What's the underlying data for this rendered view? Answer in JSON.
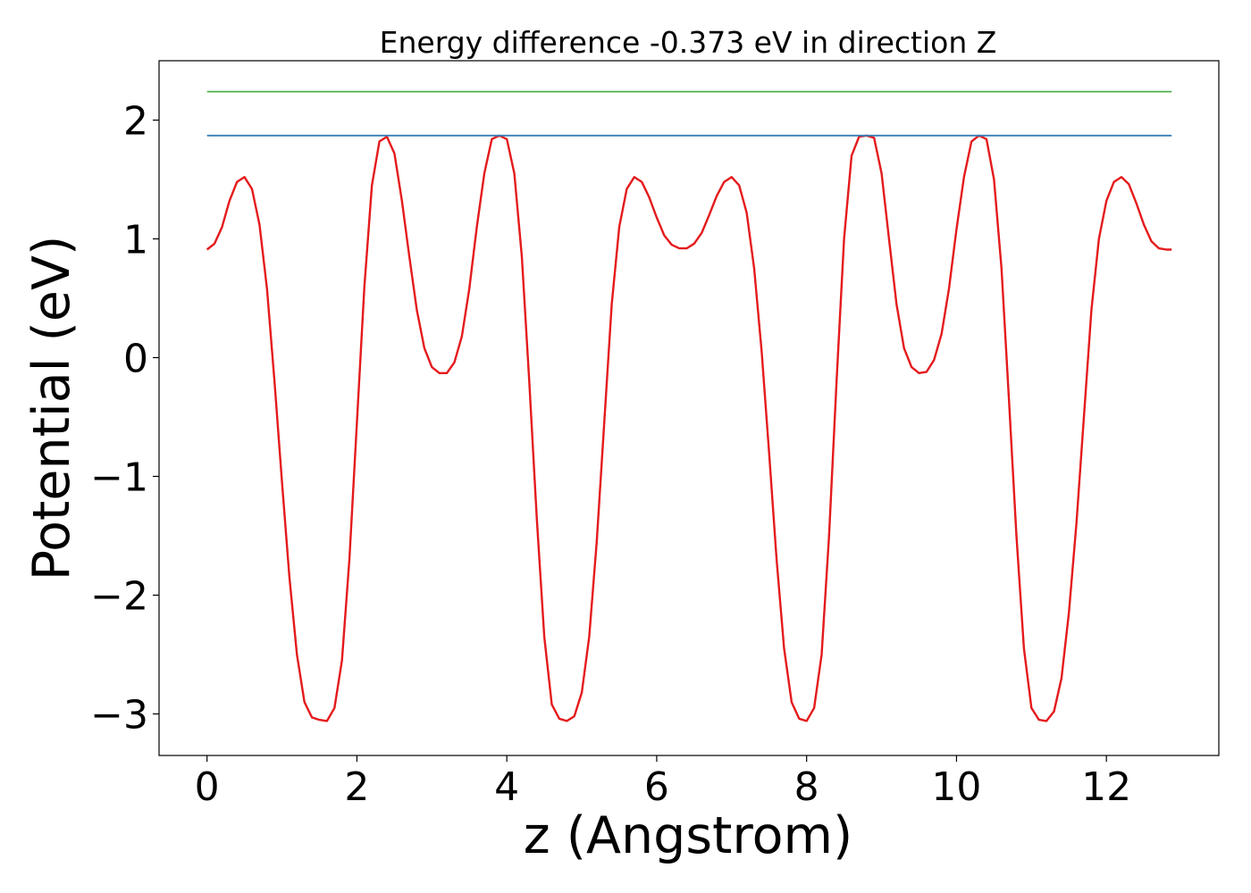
{
  "chart_data": {
    "type": "line",
    "title": "Energy difference -0.373 eV in direction Z",
    "xlabel": "z (Angstrom)",
    "ylabel": "Potential (eV)",
    "xlim": [
      -0.64,
      13.5
    ],
    "ylim": [
      -3.35,
      2.5
    ],
    "xticks": [
      0,
      2,
      4,
      6,
      8,
      10,
      12
    ],
    "xtick_labels": [
      "0",
      "2",
      "4",
      "6",
      "8",
      "10",
      "12"
    ],
    "yticks": [
      -3,
      -2,
      -1,
      0,
      1,
      2
    ],
    "ytick_labels": [
      "−3",
      "−2",
      "−1",
      "0",
      "1",
      "2"
    ],
    "grid": false,
    "series": [
      {
        "color": "#e41a1c",
        "x": [
          0.0,
          0.1,
          0.2,
          0.3,
          0.4,
          0.5,
          0.6,
          0.7,
          0.8,
          0.9,
          1.0,
          1.1,
          1.2,
          1.3,
          1.4,
          1.5,
          1.6,
          1.7,
          1.8,
          1.9,
          2.0,
          2.1,
          2.2,
          2.3,
          2.4,
          2.5,
          2.6,
          2.7,
          2.8,
          2.9,
          3.0,
          3.1,
          3.2,
          3.3,
          3.4,
          3.5,
          3.6,
          3.7,
          3.8,
          3.9,
          4.0,
          4.1,
          4.2,
          4.3,
          4.4,
          4.5,
          4.6,
          4.7,
          4.8,
          4.9,
          5.0,
          5.1,
          5.2,
          5.3,
          5.4,
          5.5,
          5.6,
          5.7,
          5.8,
          5.9,
          6.0,
          6.1,
          6.2,
          6.3,
          6.4,
          6.5,
          6.6,
          6.7,
          6.8,
          6.9,
          7.0,
          7.1,
          7.2,
          7.3,
          7.4,
          7.5,
          7.6,
          7.7,
          7.8,
          7.9,
          8.0,
          8.1,
          8.2,
          8.3,
          8.4,
          8.5,
          8.6,
          8.7,
          8.8,
          8.9,
          9.0,
          9.1,
          9.2,
          9.3,
          9.4,
          9.5,
          9.6,
          9.7,
          9.8,
          9.9,
          10.0,
          10.1,
          10.2,
          10.3,
          10.4,
          10.5,
          10.6,
          10.7,
          10.8,
          10.9,
          11.0,
          11.1,
          11.2,
          11.3,
          11.4,
          11.5,
          11.6,
          11.7,
          11.8,
          11.9,
          12.0,
          12.1,
          12.2,
          12.3,
          12.4,
          12.5,
          12.6,
          12.7,
          12.8,
          12.87
        ],
        "y": [
          0.91,
          0.96,
          1.1,
          1.32,
          1.48,
          1.52,
          1.42,
          1.12,
          0.58,
          -0.2,
          -1.05,
          -1.85,
          -2.5,
          -2.9,
          -3.03,
          -3.05,
          -3.06,
          -2.95,
          -2.55,
          -1.7,
          -0.55,
          0.6,
          1.45,
          1.82,
          1.86,
          1.72,
          1.32,
          0.85,
          0.4,
          0.08,
          -0.08,
          -0.13,
          -0.13,
          -0.04,
          0.18,
          0.58,
          1.1,
          1.55,
          1.84,
          1.87,
          1.84,
          1.55,
          0.85,
          -0.2,
          -1.35,
          -2.35,
          -2.92,
          -3.04,
          -3.06,
          -3.02,
          -2.82,
          -2.35,
          -1.55,
          -0.55,
          0.45,
          1.1,
          1.42,
          1.52,
          1.48,
          1.35,
          1.18,
          1.03,
          0.95,
          0.92,
          0.92,
          0.96,
          1.05,
          1.2,
          1.36,
          1.48,
          1.52,
          1.45,
          1.22,
          0.75,
          0.05,
          -0.8,
          -1.7,
          -2.45,
          -2.9,
          -3.04,
          -3.06,
          -2.95,
          -2.5,
          -1.5,
          -0.2,
          1.0,
          1.7,
          1.86,
          1.87,
          1.85,
          1.55,
          1.0,
          0.45,
          0.08,
          -0.08,
          -0.13,
          -0.12,
          -0.02,
          0.2,
          0.58,
          1.08,
          1.52,
          1.82,
          1.87,
          1.84,
          1.5,
          0.75,
          -0.35,
          -1.5,
          -2.45,
          -2.95,
          -3.05,
          -3.06,
          -2.98,
          -2.7,
          -2.15,
          -1.4,
          -0.5,
          0.4,
          1.0,
          1.32,
          1.48,
          1.52,
          1.46,
          1.3,
          1.12,
          0.98,
          0.92,
          0.91,
          0.91
        ]
      },
      {
        "color": "#377eb8",
        "x": [
          0.0,
          12.87
        ],
        "y": [
          1.87,
          1.87
        ]
      },
      {
        "color": "#4daf4a",
        "x": [
          0.0,
          12.87
        ],
        "y": [
          2.24,
          2.24
        ]
      }
    ]
  }
}
